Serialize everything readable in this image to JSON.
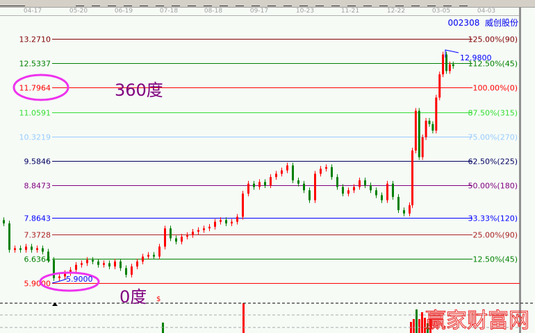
{
  "title": {
    "code": "002308",
    "name": "威创股份"
  },
  "dates": [
    "04-17",
    "05-20",
    "06-19",
    "07-18",
    "08-18",
    "09-17",
    "10-23",
    "11-21",
    "12-22",
    "03-05",
    "04-03"
  ],
  "annotations": {
    "top_label": "360度",
    "bottom_label": "0度",
    "high_price": "12.9800",
    "low_price": "5.9000",
    "dollar_marker": "$"
  },
  "watermark": "赢家财富网",
  "colors": {
    "up": "#ff0000",
    "down": "#008000",
    "highlight_ellipse": "#ee33ee",
    "degree_text": "#800080"
  },
  "chart_data": {
    "type": "candlestick",
    "title": "002308 威创股份",
    "x_tick_labels": [
      "04-17",
      "05-20",
      "06-19",
      "07-18",
      "08-18",
      "09-17",
      "10-23",
      "11-21",
      "12-22",
      "03-05",
      "04-03"
    ],
    "ylim": [
      5.9,
      13.271
    ],
    "levels": [
      {
        "price": "13.2710",
        "label": "125.00%(90)",
        "color": "#800000"
      },
      {
        "price": "12.5337",
        "label": "112.50%(45)",
        "color": "#008000"
      },
      {
        "price": "11.7964",
        "label": "100.00%(0)",
        "color": "#ff0000"
      },
      {
        "price": "11.0591",
        "label": "87.50%(315)",
        "color": "#33dd33"
      },
      {
        "price": "10.3219",
        "label": "75.00%(270)",
        "color": "#99ccff"
      },
      {
        "price": "9.5846",
        "label": "62.50%(225)",
        "color": "#000060"
      },
      {
        "price": "8.8473",
        "label": "50.00%(180)",
        "color": "#800080"
      },
      {
        "price": "7.8643",
        "label": "33.33%(120)",
        "color": "#0000ff"
      },
      {
        "price": "7.3728",
        "label": "25.00%(90)",
        "color": "#aa2222"
      },
      {
        "price": "6.6364",
        "label": "12.50%(45)",
        "color": "#008000"
      },
      {
        "price": "5.9000",
        "label": "",
        "color": "#ff0000"
      }
    ],
    "closes": [
      7.7,
      6.9,
      6.95,
      6.9,
      7.0,
      6.9,
      6.95,
      6.85,
      6.6,
      6.05,
      6.1,
      6.2,
      6.3,
      6.45,
      6.5,
      6.6,
      6.55,
      6.45,
      6.5,
      6.4,
      6.55,
      6.35,
      6.15,
      6.4,
      6.55,
      6.7,
      6.75,
      6.7,
      7.0,
      7.55,
      7.25,
      7.15,
      7.3,
      7.35,
      7.45,
      7.5,
      7.55,
      7.6,
      7.75,
      7.8,
      7.7,
      7.75,
      7.9,
      8.6,
      8.9,
      8.8,
      8.95,
      8.85,
      9.1,
      9.2,
      9.3,
      9.45,
      9.0,
      8.9,
      8.7,
      8.4,
      9.2,
      9.35,
      9.4,
      9.1,
      8.8,
      8.6,
      8.7,
      8.8,
      9.0,
      8.85,
      8.7,
      8.55,
      8.4,
      8.9,
      8.5,
      8.1,
      8.0,
      8.25,
      9.9,
      11.1,
      9.7,
      10.3,
      10.8,
      10.7,
      10.5,
      11.5,
      12.2,
      12.8,
      12.3,
      12.5,
      12.45
    ],
    "high": 12.98,
    "low": 5.9,
    "grid": false
  }
}
